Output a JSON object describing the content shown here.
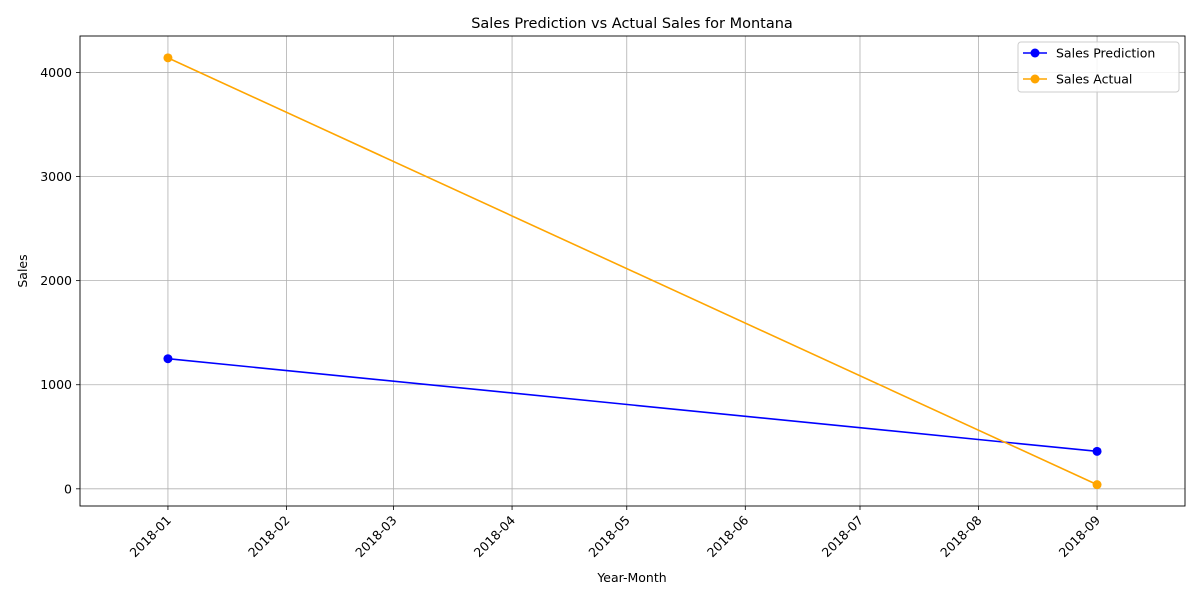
{
  "chart_data": {
    "type": "line",
    "title": "Sales Prediction vs Actual Sales for Montana",
    "xlabel": "Year-Month",
    "ylabel": "Sales",
    "x_ticks": [
      "2018-01",
      "2018-02",
      "2018-03",
      "2018-04",
      "2018-05",
      "2018-06",
      "2018-07",
      "2018-08",
      "2018-09"
    ],
    "y_ticks": [
      0,
      1000,
      2000,
      3000,
      4000
    ],
    "xlim": [
      "2017-12-09",
      "2018-09-24"
    ],
    "ylim": [
      -165,
      4350
    ],
    "grid": true,
    "legend_position": "upper right",
    "series": [
      {
        "name": "Sales Prediction",
        "color": "#0000ff",
        "marker": "circle",
        "points": [
          {
            "x": "2018-01-01",
            "y": 1250
          },
          {
            "x": "2018-09-01",
            "y": 360
          }
        ]
      },
      {
        "name": "Sales Actual",
        "color": "#ffa500",
        "marker": "circle",
        "points": [
          {
            "x": "2018-01-01",
            "y": 4140
          },
          {
            "x": "2018-09-01",
            "y": 40
          }
        ]
      }
    ]
  }
}
